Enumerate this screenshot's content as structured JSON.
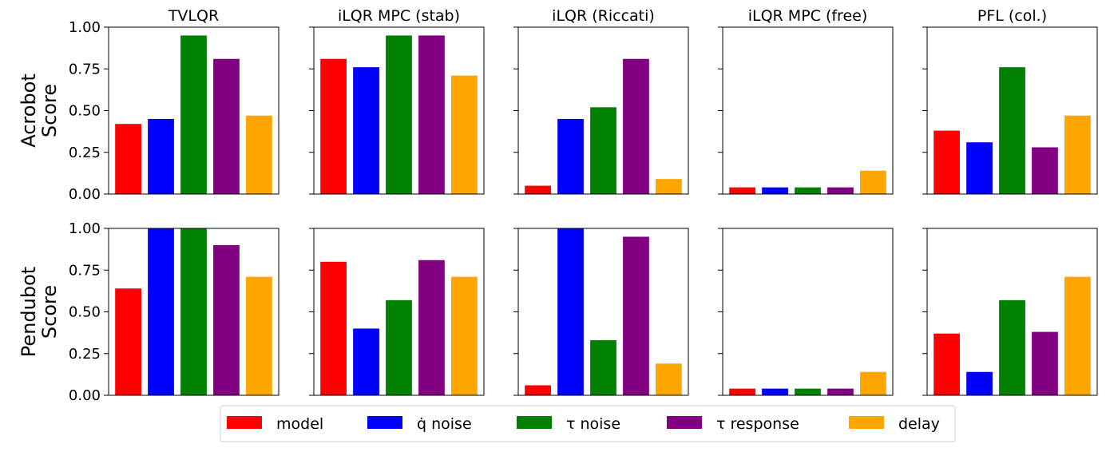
{
  "chart_data": {
    "type": "bar",
    "titles": [
      "TVLQR",
      "iLQR MPC (stab)",
      "iLQR (Riccati)",
      "iLQR MPC (free)",
      "PFL (col.)"
    ],
    "rows": [
      {
        "ylabel": [
          "Acrobot",
          "Score"
        ]
      },
      {
        "ylabel": [
          "Pendubot",
          "Score"
        ]
      }
    ],
    "ylim": [
      0,
      1
    ],
    "yticks": [
      "0.00",
      "0.25",
      "0.50",
      "0.75",
      "1.00"
    ],
    "ytick_values": [
      0,
      0.25,
      0.5,
      0.75,
      1.0
    ],
    "series": [
      {
        "name": "model",
        "color": "#ff0000"
      },
      {
        "name": "q̇ noise",
        "color": "#0000ff"
      },
      {
        "name": "τ noise",
        "color": "#008000"
      },
      {
        "name": "τ response",
        "color": "#800080"
      },
      {
        "name": "delay",
        "color": "#ffa500"
      }
    ],
    "values": [
      [
        [
          0.42,
          0.45,
          0.95,
          0.81,
          0.47
        ],
        [
          0.81,
          0.76,
          0.95,
          0.95,
          0.71
        ],
        [
          0.05,
          0.45,
          0.52,
          0.81,
          0.09
        ],
        [
          0.04,
          0.04,
          0.04,
          0.04,
          0.14
        ],
        [
          0.38,
          0.31,
          0.76,
          0.28,
          0.47
        ]
      ],
      [
        [
          0.64,
          1.0,
          1.0,
          0.9,
          0.71
        ],
        [
          0.8,
          0.4,
          0.57,
          0.81,
          0.71
        ],
        [
          0.06,
          1.0,
          0.33,
          0.95,
          0.19
        ],
        [
          0.04,
          0.04,
          0.04,
          0.04,
          0.14
        ],
        [
          0.37,
          0.14,
          0.57,
          0.38,
          0.71
        ]
      ]
    ],
    "legend_position": "bottom-center",
    "grid": false
  }
}
